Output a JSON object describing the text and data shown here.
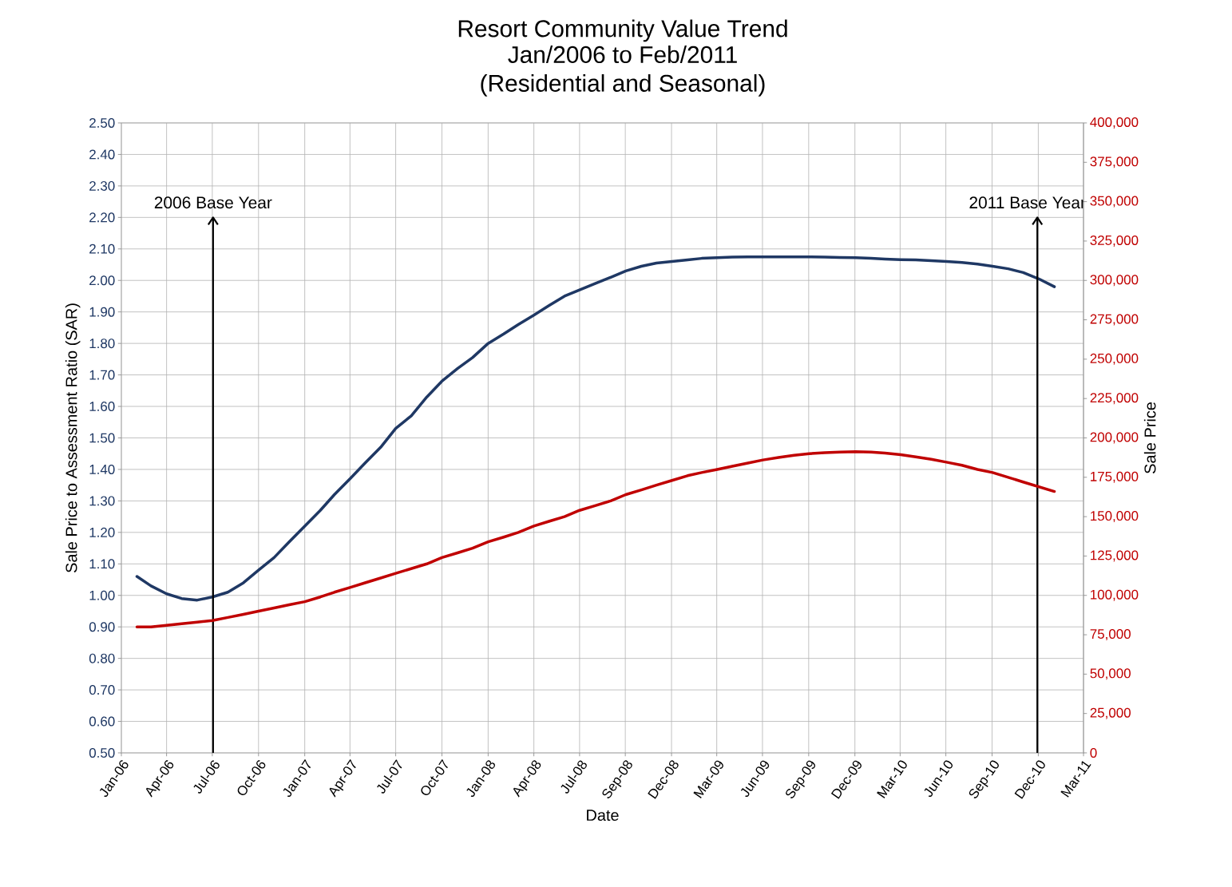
{
  "chart_data": {
    "type": "line",
    "title": "Resort Community Value Trend",
    "subtitle": "Jan/2006 to Feb/2011 (Residential and Seasonal)",
    "xlabel": "Date",
    "ylabel": "Sale Price to Assessment Ratio (SAR)",
    "y2label": "Sale Price",
    "x": [
      "2006-02",
      "2006-03",
      "2006-04",
      "2006-05",
      "2006-06",
      "2006-07",
      "2006-08",
      "2006-09",
      "2006-10",
      "2006-11",
      "2006-12",
      "2007-01",
      "2007-02",
      "2007-03",
      "2007-04",
      "2007-05",
      "2007-06",
      "2007-07",
      "2007-08",
      "2007-09",
      "2007-10",
      "2007-11",
      "2007-12",
      "2008-01",
      "2008-02",
      "2008-03",
      "2008-04",
      "2008-05",
      "2008-06",
      "2008-07",
      "2008-08",
      "2008-09",
      "2008-10",
      "2008-11",
      "2008-12",
      "2009-01",
      "2009-02",
      "2009-03",
      "2009-04",
      "2009-05",
      "2009-06",
      "2009-07",
      "2009-08",
      "2009-09",
      "2009-10",
      "2009-11",
      "2009-12",
      "2010-01",
      "2010-02",
      "2010-03",
      "2010-04",
      "2010-05",
      "2010-06",
      "2010-07",
      "2010-08",
      "2010-09",
      "2010-10",
      "2010-11",
      "2010-12",
      "2011-01",
      "2011-02"
    ],
    "series": [
      {
        "color": "#1f3864",
        "axis": "y",
        "values": [
          1.06,
          1.03,
          1.005,
          0.99,
          0.985,
          0.995,
          1.01,
          1.04,
          1.08,
          1.12,
          1.17,
          1.22,
          1.27,
          1.32,
          1.37,
          1.42,
          1.47,
          1.53,
          1.57,
          1.63,
          1.68,
          1.72,
          1.755,
          1.8,
          1.83,
          1.86,
          1.89,
          1.92,
          1.95,
          1.97,
          1.99,
          2.01,
          2.03,
          2.045,
          2.055,
          2.06,
          2.065,
          2.07,
          2.072,
          2.074,
          2.075,
          2.075,
          2.075,
          2.075,
          2.075,
          2.074,
          2.073,
          2.072,
          2.07,
          2.068,
          2.066,
          2.065,
          2.063,
          2.06,
          2.057,
          2.052,
          2.045,
          2.037,
          2.025,
          2.005,
          1.98
        ]
      },
      {
        "color": "#c00000",
        "axis": "y2",
        "values": [
          80000,
          80000,
          81000,
          82000,
          83000,
          84000,
          86000,
          88000,
          90000,
          92000,
          94000,
          96000,
          99000,
          102000,
          105000,
          108000,
          111000,
          114000,
          117000,
          120000,
          124000,
          127000,
          130000,
          134000,
          137000,
          140000,
          144000,
          147000,
          150000,
          154000,
          157000,
          160000,
          164000,
          167000,
          170000,
          173000,
          176000,
          178000,
          180000,
          182000,
          184000,
          186000,
          187600,
          189000,
          190000,
          190600,
          191000,
          191200,
          191000,
          190400,
          189400,
          188000,
          186400,
          184600,
          182600,
          180000,
          178000,
          175000,
          172000,
          169000,
          166000
        ]
      }
    ],
    "xlim": [
      "2006-01-01",
      "2011-03-31"
    ],
    "xticks": [
      {
        "value": "2006-01-01",
        "label": "Jan-06"
      },
      {
        "value": "2006-04-01",
        "label": "Apr-06"
      },
      {
        "value": "2006-07-01",
        "label": "Jul-06"
      },
      {
        "value": "2006-10-01",
        "label": "Oct-06"
      },
      {
        "value": "2007-01-01",
        "label": "Jan-07"
      },
      {
        "value": "2007-04-01",
        "label": "Apr-07"
      },
      {
        "value": "2007-07-01",
        "label": "Jul-07"
      },
      {
        "value": "2007-10-01",
        "label": "Oct-07"
      },
      {
        "value": "2008-01-01",
        "label": "Jan-08"
      },
      {
        "value": "2008-04-01",
        "label": "Apr-08"
      },
      {
        "value": "2008-07-01",
        "label": "Jul-08"
      },
      {
        "value": "2008-09-30",
        "label": "Sep-08"
      },
      {
        "value": "2008-12-31",
        "label": "Dec-08"
      },
      {
        "value": "2009-03-31",
        "label": "Mar-09"
      },
      {
        "value": "2009-06-30",
        "label": "Jun-09"
      },
      {
        "value": "2009-09-30",
        "label": "Sep-09"
      },
      {
        "value": "2009-12-31",
        "label": "Dec-09"
      },
      {
        "value": "2010-03-31",
        "label": "Mar-10"
      },
      {
        "value": "2010-06-30",
        "label": "Jun-10"
      },
      {
        "value": "2010-09-30",
        "label": "Sep-10"
      },
      {
        "value": "2010-12-31",
        "label": "Dec-10"
      },
      {
        "value": "2011-03-31",
        "label": "Mar-11"
      }
    ],
    "ylim": [
      0.5,
      2.5
    ],
    "yticks": [
      {
        "value": 0.5,
        "label": "0.50"
      },
      {
        "value": 0.6,
        "label": "0.60"
      },
      {
        "value": 0.7,
        "label": "0.70"
      },
      {
        "value": 0.8,
        "label": "0.80"
      },
      {
        "value": 0.9,
        "label": "0.90"
      },
      {
        "value": 1,
        "label": "1.00"
      },
      {
        "value": 1.1,
        "label": "1.10"
      },
      {
        "value": 1.2,
        "label": "1.20"
      },
      {
        "value": 1.3,
        "label": "1.30"
      },
      {
        "value": 1.4,
        "label": "1.40"
      },
      {
        "value": 1.5,
        "label": "1.50"
      },
      {
        "value": 1.6,
        "label": "1.60"
      },
      {
        "value": 1.7,
        "label": "1.70"
      },
      {
        "value": 1.8,
        "label": "1.80"
      },
      {
        "value": 1.9,
        "label": "1.90"
      },
      {
        "value": 2,
        "label": "2.00"
      },
      {
        "value": 2.1,
        "label": "2.10"
      },
      {
        "value": 2.2,
        "label": "2.20"
      },
      {
        "value": 2.3,
        "label": "2.30"
      },
      {
        "value": 2.4,
        "label": "2.40"
      },
      {
        "value": 2.5,
        "label": "2.50"
      }
    ],
    "y2lim": [
      0,
      400000
    ],
    "y2ticks": [
      0,
      {
        "value": 25000,
        "label": "25,000"
      },
      {
        "value": 50000,
        "label": "50,000"
      },
      {
        "value": 75000,
        "label": "75,000"
      },
      {
        "value": 100000,
        "label": "100,000"
      },
      {
        "value": 125000,
        "label": "125,000"
      },
      {
        "value": 150000,
        "label": "150,000"
      },
      {
        "value": 175000,
        "label": "175,000"
      },
      {
        "value": 200000,
        "label": "200,000"
      },
      {
        "value": 225000,
        "label": "225,000"
      },
      {
        "value": 250000,
        "label": "250,000"
      },
      {
        "value": 275000,
        "label": "275,000"
      },
      {
        "value": 300000,
        "label": "300,000"
      },
      {
        "value": 325000,
        "label": "325,000"
      },
      {
        "value": 350000,
        "label": "350,000"
      },
      {
        "value": 375000,
        "label": "375,000"
      },
      {
        "value": 400000,
        "label": "400,000"
      }
    ],
    "annotations": [
      "2006 Base Year",
      "2011 Base Year"
    ],
    "grid": true,
    "marker": "none",
    "line_style": "solid"
  }
}
